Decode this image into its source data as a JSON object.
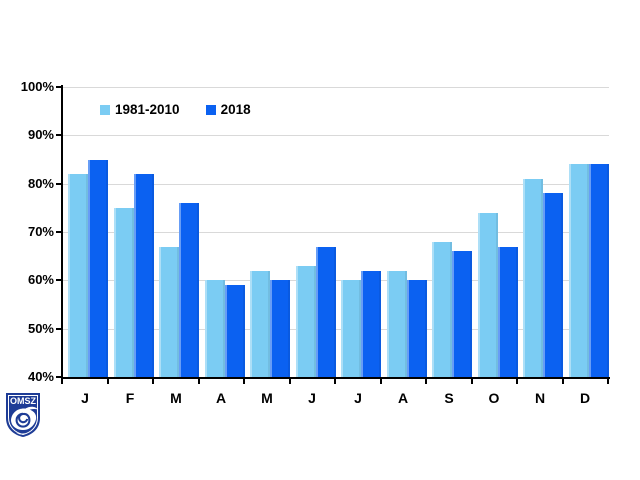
{
  "chart_data": {
    "type": "bar",
    "title": "",
    "xlabel": "",
    "ylabel": "",
    "categories": [
      "J",
      "F",
      "M",
      "A",
      "M",
      "J",
      "J",
      "A",
      "S",
      "O",
      "N",
      "D"
    ],
    "series": [
      {
        "name": "1981-2010",
        "color": "#7BCCF3",
        "values": [
          82,
          75,
          67,
          60,
          62,
          63,
          60,
          62,
          68,
          74,
          81,
          84
        ]
      },
      {
        "name": "2018",
        "color": "#0B61F1",
        "values": [
          85,
          82,
          76,
          59,
          60,
          67,
          62,
          60,
          66,
          67,
          78,
          84
        ]
      }
    ],
    "ylim": [
      40,
      100
    ],
    "ytick_step": 10,
    "ytick_suffix": "%",
    "grid": true,
    "gridline_color": "#D9D9D9",
    "axis_color": "#000000",
    "legend_position": "top-inside-left"
  },
  "logo": {
    "text": "OMSZ",
    "shield_color": "#1E3C96"
  }
}
